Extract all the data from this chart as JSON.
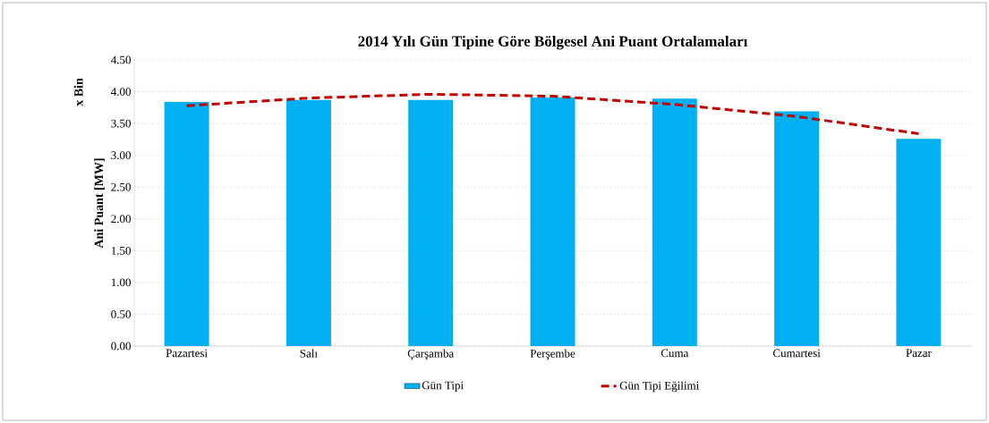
{
  "chart_data": {
    "type": "bar",
    "title": "2014 Yılı Gün Tipine Göre Bölgesel Ani Puant Ortalamaları",
    "ylabel": "Ani Puant [MW]",
    "annotations": [
      "x Bin"
    ],
    "categories": [
      "Pazartesi",
      "Salı",
      "Çarşamba",
      "Perşembe",
      "Cuma",
      "Cumartesi",
      "Pazar"
    ],
    "series": [
      {
        "name": "Gün Tipi",
        "color": "#00b0f0",
        "values": [
          3.84,
          3.87,
          3.87,
          3.91,
          3.89,
          3.69,
          3.26
        ]
      },
      {
        "name": "Gün Tipi Eğilimi",
        "type": "line",
        "line_style": "dashed",
        "color": "#c00000",
        "values": [
          3.78,
          3.9,
          3.96,
          3.93,
          3.8,
          3.61,
          3.34
        ]
      }
    ],
    "ylim": [
      0,
      4.5
    ],
    "yticks": [
      {
        "value": 0,
        "label": "0.00"
      },
      {
        "value": 0.5,
        "label": "0.50"
      },
      {
        "value": 1,
        "label": "1.00"
      },
      {
        "value": 1.5,
        "label": "1.50"
      },
      {
        "value": 2,
        "label": "2.00"
      },
      {
        "value": 2.5,
        "label": "2.50"
      },
      {
        "value": 3,
        "label": "3.00"
      },
      {
        "value": 3.5,
        "label": "3.50"
      },
      {
        "value": 4,
        "label": "4.00"
      },
      {
        "value": 4.5,
        "label": "4.50"
      }
    ],
    "grid": "y",
    "legend": "bottom"
  }
}
